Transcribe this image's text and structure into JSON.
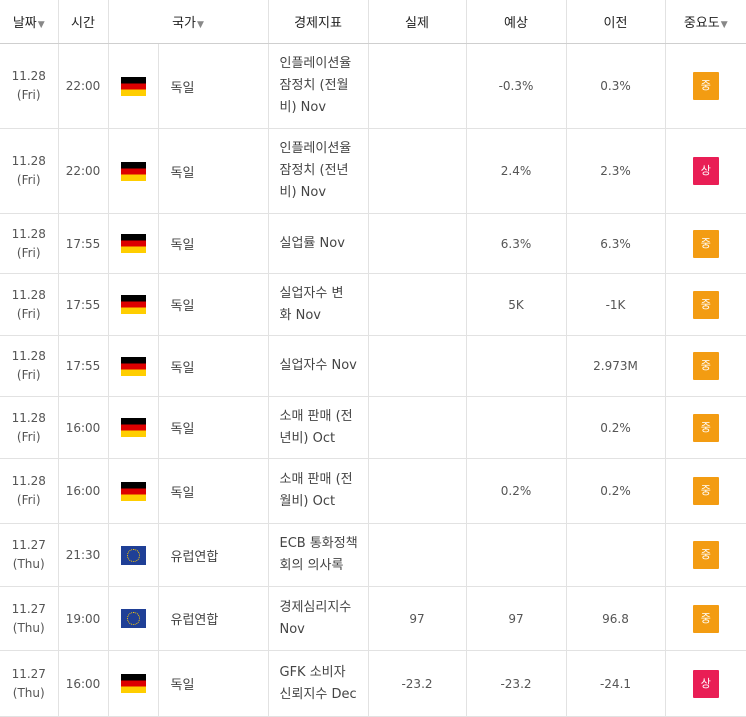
{
  "headers": {
    "date": "날짜",
    "time": "시간",
    "country": "국가",
    "indicator": "경제지표",
    "actual": "실제",
    "forecast": "예상",
    "previous": "이전",
    "importance": "중요도",
    "sort_icon": "▼"
  },
  "colors": {
    "importance_mid": "#f39c12",
    "importance_high": "#e91e55"
  },
  "rows": [
    {
      "date": "11.28",
      "day": "(Fri)",
      "time": "22:00",
      "flag": "germany-flag-icon",
      "country": "독일",
      "ind1": "인플레이션율",
      "ind2": "잠정치 (전월",
      "ind3": "비) Nov",
      "actual": "",
      "forecast": "-0.3%",
      "previous": "0.3%",
      "importance": "중",
      "level": "mid"
    },
    {
      "date": "11.28",
      "day": "(Fri)",
      "time": "22:00",
      "flag": "germany-flag-icon",
      "country": "독일",
      "ind1": "인플레이션율",
      "ind2": "잠정치 (전년",
      "ind3": "비) Nov",
      "actual": "",
      "forecast": "2.4%",
      "previous": "2.3%",
      "importance": "상",
      "level": "high"
    },
    {
      "date": "11.28",
      "day": "(Fri)",
      "time": "17:55",
      "flag": "germany-flag-icon",
      "country": "독일",
      "ind1": "실업률 Nov",
      "ind2": "",
      "ind3": "",
      "actual": "",
      "forecast": "6.3%",
      "previous": "6.3%",
      "importance": "중",
      "level": "mid"
    },
    {
      "date": "11.28",
      "day": "(Fri)",
      "time": "17:55",
      "flag": "germany-flag-icon",
      "country": "독일",
      "ind1": "실업자수 변",
      "ind2": "화 Nov",
      "ind3": "",
      "actual": "",
      "forecast": "5K",
      "previous": "-1K",
      "importance": "중",
      "level": "mid"
    },
    {
      "date": "11.28",
      "day": "(Fri)",
      "time": "17:55",
      "flag": "germany-flag-icon",
      "country": "독일",
      "ind1": "실업자수 Nov",
      "ind2": "",
      "ind3": "",
      "actual": "",
      "forecast": "",
      "previous": "2.973M",
      "importance": "중",
      "level": "mid"
    },
    {
      "date": "11.28",
      "day": "(Fri)",
      "time": "16:00",
      "flag": "germany-flag-icon",
      "country": "독일",
      "ind1": "소매 판매 (전",
      "ind2": "년비) Oct",
      "ind3": "",
      "actual": "",
      "forecast": "",
      "previous": "0.2%",
      "importance": "중",
      "level": "mid"
    },
    {
      "date": "11.28",
      "day": "(Fri)",
      "time": "16:00",
      "flag": "germany-flag-icon",
      "country": "독일",
      "ind1": "소매 판매 (전",
      "ind2": "월비) Oct",
      "ind3": "",
      "actual": "",
      "forecast": "0.2%",
      "previous": "0.2%",
      "importance": "중",
      "level": "mid"
    },
    {
      "date": "11.27",
      "day": "(Thu)",
      "time": "21:30",
      "flag": "eu-flag-icon",
      "country": "유럽연합",
      "ind1": "ECB 통화정책",
      "ind2": "회의 의사록",
      "ind3": "",
      "actual": "",
      "forecast": "",
      "previous": "",
      "importance": "중",
      "level": "mid"
    },
    {
      "date": "11.27",
      "day": "(Thu)",
      "time": "19:00",
      "flag": "eu-flag-icon",
      "country": "유럽연합",
      "ind1": "경제심리지수",
      "ind2": "Nov",
      "ind3": "",
      "actual": "97",
      "forecast": "97",
      "previous": "96.8",
      "importance": "중",
      "level": "mid"
    },
    {
      "date": "11.27",
      "day": "(Thu)",
      "time": "16:00",
      "flag": "germany-flag-icon",
      "country": "독일",
      "ind1": "GFK 소비자",
      "ind2": "신뢰지수 Dec",
      "ind3": "",
      "actual": "-23.2",
      "forecast": "-23.2",
      "previous": "-24.1",
      "importance": "상",
      "level": "high"
    }
  ]
}
